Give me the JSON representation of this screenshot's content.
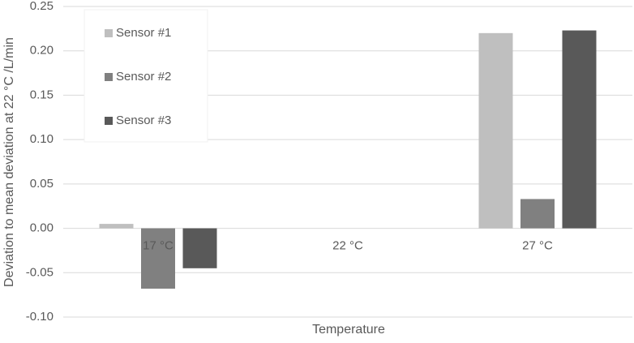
{
  "chart_data": {
    "type": "bar",
    "x_label": "Temperature",
    "y_label": "Deviation to mean deviation at 22 °C /L/min",
    "categories": [
      "17 °C",
      "22 °C",
      "27 °C"
    ],
    "series": [
      {
        "name": "Sensor #1",
        "color": "#bfbfbf",
        "values": [
          0.005,
          0,
          0.22
        ]
      },
      {
        "name": "Sensor #2",
        "color": "#808080",
        "values": [
          -0.068,
          0,
          0.033
        ]
      },
      {
        "name": "Sensor #3",
        "color": "#595959",
        "values": [
          -0.045,
          0,
          0.223
        ]
      }
    ],
    "ylim": [
      -0.1,
      0.25
    ],
    "yticks": [
      {
        "value": -0.1,
        "label": "-0.10"
      },
      -0.05,
      {
        "value": 0,
        "label": "0.00"
      },
      0.05,
      {
        "value": 0.1,
        "label": "0.10"
      },
      0.15,
      {
        "value": 0.2,
        "label": "0.20"
      },
      0.25
    ],
    "grid": true,
    "legend": "upper left"
  }
}
